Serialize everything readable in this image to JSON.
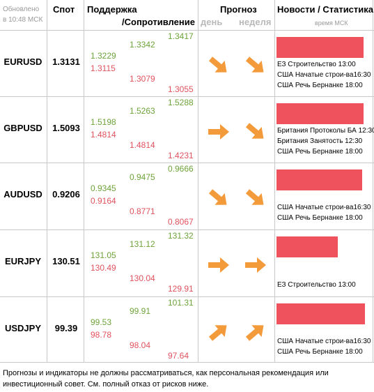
{
  "header": {
    "updated_line1": "Обновлено",
    "updated_line2": "в 10:48 МСК",
    "spot": "Спот",
    "support": "Поддержка",
    "resistance": "/Сопротивление",
    "forecast": "Прогноз",
    "day": "день",
    "week": "неделя",
    "news": "Новости / Статистика",
    "time_msk": "время МСК"
  },
  "colors": {
    "support": "#6da33a",
    "resistance": "#e0525d",
    "arrow": "#f39a3b",
    "news_bar": "#f0525d"
  },
  "rows": [
    {
      "pair": "EURUSD",
      "spot": "1.3131",
      "col1": [
        "1.3229",
        "1.3115"
      ],
      "col2": [
        "1.3342",
        "1.3079"
      ],
      "col3": [
        "1.3417",
        "1.3055"
      ],
      "day_arrow": "arrow-down-right-icon",
      "week_arrow": "arrow-down-right-icon",
      "news": [
        "ЕЗ Строительство 13:00",
        "США Начатые строи-ва16:30",
        "США Речь Бернанке 18:00"
      ]
    },
    {
      "pair": "GBPUSD",
      "spot": "1.5093",
      "col1": [
        "1.5198",
        "1.4814"
      ],
      "col2": [
        "1.5263",
        "1.4814"
      ],
      "col3": [
        "1.5288",
        "1.4231"
      ],
      "day_arrow": "arrow-right-icon",
      "week_arrow": "arrow-down-right-icon",
      "news": [
        "Британия Протоколы БА 12:30",
        "Британия Занятость 12:30",
        "США Речь Бернанке 18:00"
      ]
    },
    {
      "pair": "AUDUSD",
      "spot": "0.9206",
      "col1": [
        "0.9345",
        "0.9164"
      ],
      "col2": [
        "0.9475",
        "0.8771"
      ],
      "col3": [
        "0.9666",
        "0.8067"
      ],
      "day_arrow": "arrow-down-right-icon",
      "week_arrow": "arrow-down-right-icon",
      "news": [
        "США Начатые строи-ва16:30",
        "США Речь Бернанке 18:00"
      ]
    },
    {
      "pair": "EURJPY",
      "spot": "130.51",
      "col1": [
        "131.05",
        "130.49"
      ],
      "col2": [
        "131.12",
        "130.04"
      ],
      "col3": [
        "131.32",
        "129.91"
      ],
      "day_arrow": "arrow-right-icon",
      "week_arrow": "arrow-right-icon",
      "news": [
        "ЕЗ Строительство 13:00"
      ]
    },
    {
      "pair": "USDJPY",
      "spot": "99.39",
      "col1": [
        "99.53",
        "98.78"
      ],
      "col2": [
        "99.91",
        "98.04"
      ],
      "col3": [
        "101.31",
        "97.64"
      ],
      "day_arrow": "arrow-up-right-icon",
      "week_arrow": "arrow-up-right-icon",
      "news": [
        "США Начатые строи-ва16:30",
        "США Речь Бернанке 18:00"
      ]
    }
  ],
  "footer": "Прогнозы и индикаторы не должны рассматриваться, как персональная рекомендация или инвестиционный совет. См. полный отказ от рисков ниже."
}
